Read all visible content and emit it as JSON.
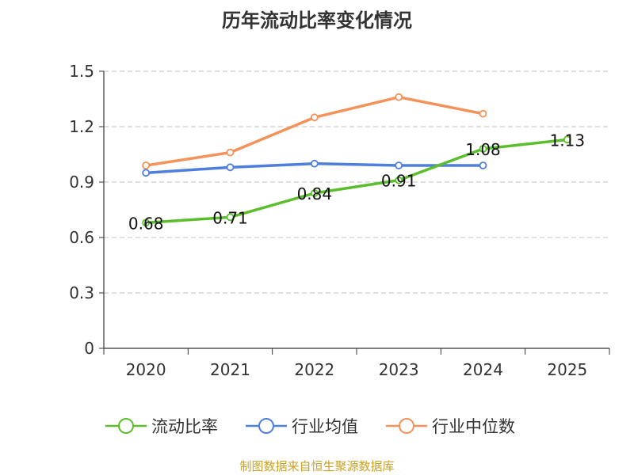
{
  "chart_data": {
    "type": "line",
    "title": "历年流动比率变化情况",
    "categories": [
      "2020",
      "2021",
      "2022",
      "2023",
      "2024",
      "2025"
    ],
    "ylim": [
      0,
      1.5
    ],
    "yticks": [
      "0",
      "0.3",
      "0.6",
      "0.9",
      "1.2",
      "1.5"
    ],
    "ytick_values": [
      0,
      0.3,
      0.6,
      0.9,
      1.2,
      1.5
    ],
    "grid": true,
    "legend_position": "bottom",
    "series": [
      {
        "name": "流动比率",
        "color": "#5dbe2d",
        "values": [
          0.68,
          0.71,
          0.84,
          0.91,
          1.08,
          1.13
        ],
        "labels": [
          "0.68",
          "0.71",
          "0.84",
          "0.91",
          "1.08",
          "1.13"
        ]
      },
      {
        "name": "行业均值",
        "color": "#4f7fdd",
        "values": [
          0.95,
          0.98,
          1.0,
          0.99,
          0.99,
          null
        ]
      },
      {
        "name": "行业中位数",
        "color": "#f4925a",
        "values": [
          0.99,
          1.06,
          1.25,
          1.36,
          1.27,
          null
        ]
      }
    ]
  },
  "footer": "制图数据来自恒生聚源数据库"
}
